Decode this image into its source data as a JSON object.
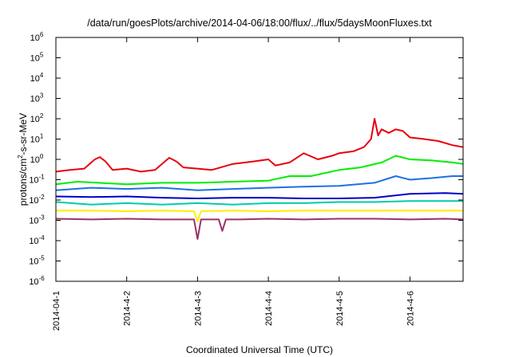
{
  "chart_data": {
    "type": "line",
    "title": "/data/run/goesPlots/archive/2014-04-06/18:00/flux/../flux/5daysMoonFluxes.txt",
    "xlabel": "Coordinated Universal Time (UTC)",
    "ylabel_prefix": "protons/cm",
    "ylabel_sup": "2",
    "ylabel_suffix": "-s-sr-MeV",
    "y_scale": "log",
    "ylim": [
      1e-06,
      1000000.0
    ],
    "xlim": [
      "2014-04-01",
      "2014-04-06T18:00"
    ],
    "grid": false,
    "y_ticks": [
      {
        "base": "10",
        "exp": "-6"
      },
      {
        "base": "10",
        "exp": "-5"
      },
      {
        "base": "10",
        "exp": "-4"
      },
      {
        "base": "10",
        "exp": "-3"
      },
      {
        "base": "10",
        "exp": "-2"
      },
      {
        "base": "10",
        "exp": "-1"
      },
      {
        "base": "10",
        "exp": "0"
      },
      {
        "base": "10",
        "exp": "1"
      },
      {
        "base": "10",
        "exp": "2"
      },
      {
        "base": "10",
        "exp": "3"
      },
      {
        "base": "10",
        "exp": "4"
      },
      {
        "base": "10",
        "exp": "5"
      },
      {
        "base": "10",
        "exp": "6"
      }
    ],
    "x_ticks": [
      "2014-04-1",
      "2014-4-2",
      "2014-4-3",
      "2014-4-4",
      "2014-4-5",
      "2014-4-6"
    ],
    "x_ticks_days": [
      0,
      1,
      2,
      3,
      4,
      5
    ],
    "series": [
      {
        "color": "#e8000b",
        "x": [
          0,
          0.2,
          0.4,
          0.55,
          0.62,
          0.7,
          0.8,
          1.0,
          1.2,
          1.4,
          1.6,
          1.7,
          1.8,
          2.0,
          2.2,
          2.5,
          2.8,
          3.0,
          3.1,
          3.3,
          3.5,
          3.7,
          3.9,
          4.0,
          4.2,
          4.35,
          4.45,
          4.5,
          4.55,
          4.6,
          4.7,
          4.8,
          4.9,
          5.0,
          5.2,
          5.4,
          5.6,
          5.75
        ],
        "y": [
          0.25,
          0.3,
          0.35,
          1.0,
          1.3,
          0.8,
          0.3,
          0.35,
          0.25,
          0.3,
          1.2,
          0.8,
          0.4,
          0.35,
          0.3,
          0.6,
          0.8,
          1.0,
          0.5,
          0.7,
          2.0,
          1.0,
          1.5,
          2.0,
          2.5,
          4.0,
          10,
          100,
          15,
          30,
          20,
          30,
          25,
          12,
          10,
          8,
          5,
          4
        ]
      },
      {
        "color": "#00ee00",
        "x": [
          0,
          0.3,
          0.6,
          1.0,
          1.5,
          2.0,
          2.5,
          3.0,
          3.3,
          3.6,
          4.0,
          4.3,
          4.6,
          4.8,
          5.0,
          5.3,
          5.6,
          5.75
        ],
        "y": [
          0.06,
          0.08,
          0.07,
          0.06,
          0.07,
          0.07,
          0.08,
          0.09,
          0.15,
          0.15,
          0.3,
          0.4,
          0.7,
          1.5,
          1.0,
          0.9,
          0.7,
          0.6
        ]
      },
      {
        "color": "#1e6fe6",
        "x": [
          0,
          0.5,
          1.0,
          1.5,
          2.0,
          2.5,
          3.0,
          3.5,
          4.0,
          4.5,
          4.8,
          5.0,
          5.3,
          5.6,
          5.75
        ],
        "y": [
          0.03,
          0.04,
          0.035,
          0.04,
          0.03,
          0.035,
          0.04,
          0.045,
          0.05,
          0.07,
          0.15,
          0.1,
          0.12,
          0.15,
          0.15
        ]
      },
      {
        "color": "#0000c8",
        "x": [
          0,
          0.5,
          1.0,
          1.5,
          2.0,
          2.5,
          3.0,
          3.5,
          4.0,
          4.5,
          5.0,
          5.5,
          5.75
        ],
        "y": [
          0.015,
          0.014,
          0.015,
          0.013,
          0.012,
          0.013,
          0.013,
          0.012,
          0.012,
          0.013,
          0.02,
          0.022,
          0.02
        ]
      },
      {
        "color": "#00ccaa",
        "x": [
          0,
          0.5,
          1.0,
          1.5,
          2.0,
          2.5,
          3.0,
          3.5,
          4.0,
          4.5,
          5.0,
          5.5,
          5.75
        ],
        "y": [
          0.008,
          0.006,
          0.007,
          0.006,
          0.007,
          0.006,
          0.007,
          0.007,
          0.008,
          0.008,
          0.009,
          0.009,
          0.009
        ]
      },
      {
        "color": "#ffee00",
        "x": [
          0,
          0.5,
          1.0,
          1.5,
          1.95,
          2.0,
          2.05,
          2.5,
          3.0,
          3.5,
          4.0,
          4.5,
          5.0,
          5.5,
          5.75
        ],
        "y": [
          0.003,
          0.003,
          0.0028,
          0.003,
          0.0028,
          0.0009,
          0.0028,
          0.003,
          0.0028,
          0.003,
          0.003,
          0.003,
          0.003,
          0.003,
          0.003
        ]
      },
      {
        "color": "#993366",
        "x": [
          0,
          0.5,
          1.0,
          1.5,
          1.95,
          2.0,
          2.05,
          2.2,
          2.3,
          2.35,
          2.4,
          2.6,
          3.0,
          3.5,
          4.0,
          4.5,
          5.0,
          5.5,
          5.75
        ],
        "y": [
          0.0012,
          0.0011,
          0.0012,
          0.0011,
          0.0011,
          0.00012,
          0.0011,
          0.0011,
          0.0011,
          0.0003,
          0.0011,
          0.0011,
          0.0012,
          0.0011,
          0.0012,
          0.0012,
          0.0011,
          0.0012,
          0.0011
        ]
      }
    ]
  }
}
